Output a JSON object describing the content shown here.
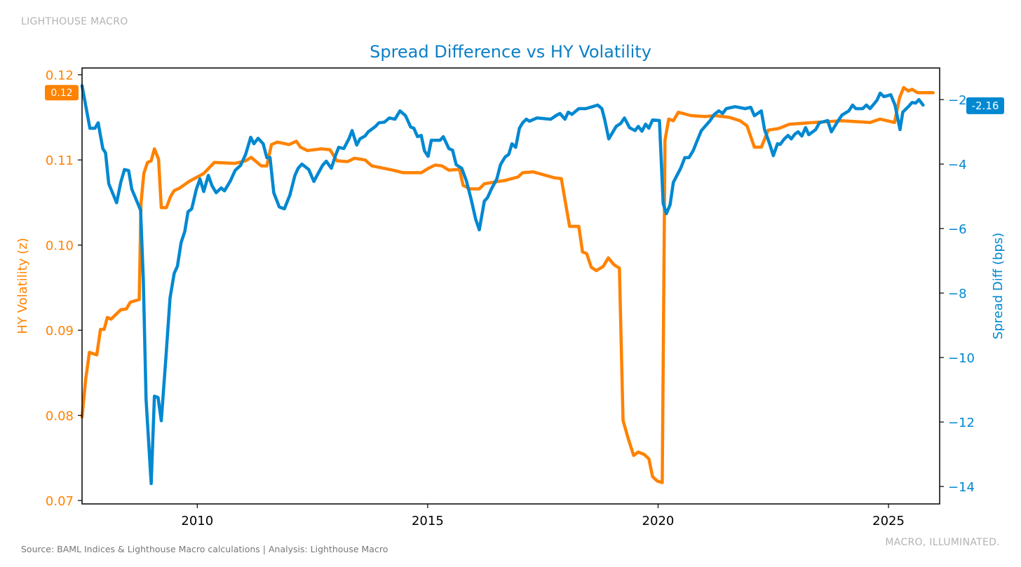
{
  "brand": "LIGHTHOUSE MACRO",
  "source": "Source: BAML Indices & Lighthouse Macro calculations | Analysis: Lighthouse Macro",
  "tagline": "MACRO, ILLUMINATED.",
  "colors": {
    "hy_vol": "#ff8200",
    "spread_diff": "#0088d1",
    "title": "#0a7fc8"
  },
  "chart_data": {
    "type": "line",
    "title": "Spread Difference vs HY Volatility",
    "xlabel": "",
    "ylabel_left": "HY Volatility (z)",
    "ylabel_right": "Spread Diff (bps)",
    "xlim": [
      2007.5,
      2026.11
    ],
    "ylim_left": [
      0.0696,
      0.1208
    ],
    "ylim_right": [
      -14.54,
      -1.02
    ],
    "x_ticks": [
      2010,
      2015,
      2020,
      2025
    ],
    "y_ticks_left": [
      0.07,
      0.08,
      0.09,
      0.1,
      0.11,
      0.12
    ],
    "y_ticks_right": [
      -14,
      -12,
      -10,
      -8,
      -6,
      -4,
      -2
    ],
    "y_tick_labels_left": [
      "0.07",
      "0.08",
      "0.09",
      "0.10",
      "0.11",
      "0.12"
    ],
    "y_tick_labels_right": [
      "−14",
      "−12",
      "−10",
      "−8",
      "−6",
      "−4",
      "−2"
    ],
    "grid": false,
    "series": [
      {
        "name": "HY Volatility (z)",
        "axis": "left",
        "last_label": "0.12",
        "x": [
          2007.5,
          2007.58,
          2007.66,
          2007.82,
          2007.9,
          2007.98,
          2008.05,
          2008.13,
          2008.34,
          2008.46,
          2008.55,
          2008.74,
          2008.78,
          2008.84,
          2008.92,
          2009.0,
          2009.07,
          2009.16,
          2009.22,
          2009.33,
          2009.42,
          2009.5,
          2009.62,
          2009.83,
          2010.14,
          2010.37,
          2010.82,
          2011.05,
          2011.17,
          2011.39,
          2011.51,
          2011.61,
          2011.74,
          2011.99,
          2012.15,
          2012.24,
          2012.39,
          2012.69,
          2012.88,
          2013.03,
          2013.26,
          2013.41,
          2013.64,
          2013.79,
          2014.25,
          2014.47,
          2014.86,
          2015.01,
          2015.16,
          2015.31,
          2015.46,
          2015.69,
          2015.77,
          2015.92,
          2016.12,
          2016.23,
          2016.68,
          2016.96,
          2017.06,
          2017.29,
          2017.75,
          2017.9,
          2017.98,
          2018.08,
          2018.28,
          2018.36,
          2018.45,
          2018.55,
          2018.66,
          2018.81,
          2018.92,
          2019.04,
          2019.16,
          2019.24,
          2019.35,
          2019.47,
          2019.57,
          2019.7,
          2019.8,
          2019.88,
          2019.98,
          2020.09,
          2020.15,
          2020.23,
          2020.33,
          2020.44,
          2020.72,
          2021.02,
          2021.25,
          2021.55,
          2021.78,
          2021.93,
          2022.09,
          2022.24,
          2022.39,
          2022.62,
          2022.85,
          2023.38,
          2023.99,
          2024.6,
          2024.82,
          2025.13,
          2025.24,
          2025.33,
          2025.43,
          2025.51,
          2025.63,
          2025.97
        ],
        "y": [
          0.0798,
          0.0843,
          0.0874,
          0.0871,
          0.0901,
          0.0901,
          0.0915,
          0.0913,
          0.0924,
          0.0925,
          0.0933,
          0.0936,
          0.1049,
          0.1084,
          0.1097,
          0.1099,
          0.1113,
          0.1101,
          0.1044,
          0.1044,
          0.1057,
          0.1064,
          0.1067,
          0.1075,
          0.1084,
          0.1097,
          0.1096,
          0.1099,
          0.1103,
          0.1093,
          0.1093,
          0.1118,
          0.1121,
          0.1118,
          0.1122,
          0.1115,
          0.1111,
          0.1113,
          0.1112,
          0.1099,
          0.1098,
          0.1102,
          0.11,
          0.1093,
          0.1088,
          0.1085,
          0.1085,
          0.109,
          0.1094,
          0.1093,
          0.1088,
          0.1089,
          0.107,
          0.1066,
          0.1066,
          0.1072,
          0.1076,
          0.108,
          0.1085,
          0.1086,
          0.1079,
          0.1078,
          0.1053,
          0.1022,
          0.1022,
          0.0992,
          0.099,
          0.0974,
          0.097,
          0.0975,
          0.0985,
          0.0977,
          0.0973,
          0.0794,
          0.0773,
          0.0753,
          0.0757,
          0.0754,
          0.0749,
          0.0728,
          0.0723,
          0.0721,
          0.1123,
          0.1148,
          0.1146,
          0.1156,
          0.1152,
          0.1151,
          0.1152,
          0.115,
          0.1146,
          0.114,
          0.1115,
          0.1115,
          0.1135,
          0.1137,
          0.1142,
          0.1144,
          0.1146,
          0.1144,
          0.1148,
          0.1144,
          0.1173,
          0.1185,
          0.1181,
          0.1183,
          0.1179,
          0.1179
        ]
      },
      {
        "name": "Spread Diff (bps)",
        "axis": "right",
        "last_label": "-2.16",
        "x": [
          2007.5,
          2007.67,
          2007.78,
          2007.85,
          2007.95,
          2008.01,
          2008.08,
          2008.25,
          2008.34,
          2008.42,
          2008.51,
          2008.58,
          2008.77,
          2008.83,
          2008.89,
          2009.0,
          2009.07,
          2009.15,
          2009.22,
          2009.32,
          2009.41,
          2009.5,
          2009.57,
          2009.65,
          2009.73,
          2009.8,
          2009.88,
          2009.98,
          2010.06,
          2010.14,
          2010.24,
          2010.32,
          2010.41,
          2010.52,
          2010.59,
          2010.72,
          2010.82,
          2010.94,
          2011.05,
          2011.16,
          2011.23,
          2011.32,
          2011.43,
          2011.51,
          2011.58,
          2011.66,
          2011.78,
          2011.89,
          2012.01,
          2012.12,
          2012.19,
          2012.27,
          2012.42,
          2012.53,
          2012.6,
          2012.72,
          2012.8,
          2012.91,
          2013.0,
          2013.07,
          2013.18,
          2013.29,
          2013.36,
          2013.46,
          2013.53,
          2013.64,
          2013.71,
          2013.87,
          2013.94,
          2014.06,
          2014.17,
          2014.29,
          2014.4,
          2014.52,
          2014.63,
          2014.7,
          2014.78,
          2014.86,
          2014.93,
          2015.01,
          2015.08,
          2015.27,
          2015.34,
          2015.46,
          2015.54,
          2015.62,
          2015.74,
          2015.84,
          2015.95,
          2016.04,
          2016.12,
          2016.23,
          2016.3,
          2016.38,
          2016.5,
          2016.58,
          2016.68,
          2016.76,
          2016.83,
          2016.91,
          2016.99,
          2017.06,
          2017.14,
          2017.21,
          2017.37,
          2017.67,
          2017.78,
          2017.87,
          2017.98,
          2018.05,
          2018.13,
          2018.28,
          2018.43,
          2018.58,
          2018.69,
          2018.78,
          2018.84,
          2018.93,
          2019.09,
          2019.19,
          2019.27,
          2019.38,
          2019.5,
          2019.57,
          2019.65,
          2019.73,
          2019.8,
          2019.88,
          2020.03,
          2020.11,
          2020.18,
          2020.26,
          2020.33,
          2020.41,
          2020.49,
          2020.58,
          2020.67,
          2020.76,
          2020.87,
          2020.94,
          2021.13,
          2021.22,
          2021.32,
          2021.4,
          2021.48,
          2021.67,
          2021.89,
          2022.01,
          2022.09,
          2022.24,
          2022.31,
          2022.42,
          2022.5,
          2022.59,
          2022.65,
          2022.74,
          2022.82,
          2022.89,
          2022.97,
          2023.04,
          2023.12,
          2023.2,
          2023.27,
          2023.42,
          2023.5,
          2023.68,
          2023.76,
          2023.91,
          2023.99,
          2024.14,
          2024.22,
          2024.29,
          2024.44,
          2024.52,
          2024.6,
          2024.75,
          2024.82,
          2024.9,
          2025.05,
          2025.14,
          2025.25,
          2025.31,
          2025.43,
          2025.51,
          2025.59,
          2025.66,
          2025.75
        ],
        "y": [
          -1.57,
          -2.89,
          -2.89,
          -2.72,
          -3.52,
          -3.65,
          -4.61,
          -5.2,
          -4.57,
          -4.17,
          -4.2,
          -4.78,
          -5.43,
          -7.61,
          -11.3,
          -13.91,
          -11.2,
          -11.24,
          -11.96,
          -10.0,
          -8.15,
          -7.39,
          -7.17,
          -6.43,
          -6.09,
          -5.48,
          -5.39,
          -4.78,
          -4.46,
          -4.85,
          -4.35,
          -4.67,
          -4.89,
          -4.74,
          -4.83,
          -4.52,
          -4.2,
          -4.04,
          -3.7,
          -3.17,
          -3.37,
          -3.2,
          -3.37,
          -3.8,
          -3.8,
          -4.89,
          -5.33,
          -5.39,
          -4.96,
          -4.35,
          -4.13,
          -4.0,
          -4.17,
          -4.54,
          -4.35,
          -4.04,
          -3.91,
          -4.13,
          -3.74,
          -3.48,
          -3.52,
          -3.22,
          -2.96,
          -3.41,
          -3.22,
          -3.13,
          -3.0,
          -2.83,
          -2.72,
          -2.7,
          -2.57,
          -2.61,
          -2.35,
          -2.5,
          -2.85,
          -2.89,
          -3.15,
          -3.11,
          -3.59,
          -3.76,
          -3.26,
          -3.26,
          -3.15,
          -3.52,
          -3.57,
          -4.02,
          -4.13,
          -4.52,
          -5.13,
          -5.7,
          -6.04,
          -5.15,
          -5.04,
          -4.78,
          -4.46,
          -4.02,
          -3.78,
          -3.7,
          -3.37,
          -3.48,
          -2.89,
          -2.72,
          -2.61,
          -2.67,
          -2.57,
          -2.61,
          -2.5,
          -2.43,
          -2.61,
          -2.39,
          -2.46,
          -2.28,
          -2.28,
          -2.22,
          -2.17,
          -2.28,
          -2.61,
          -3.22,
          -2.83,
          -2.74,
          -2.57,
          -2.87,
          -2.96,
          -2.83,
          -2.98,
          -2.76,
          -2.89,
          -2.63,
          -2.65,
          -5.22,
          -5.54,
          -5.26,
          -4.57,
          -4.35,
          -4.13,
          -3.8,
          -3.8,
          -3.59,
          -3.2,
          -2.96,
          -2.65,
          -2.46,
          -2.35,
          -2.43,
          -2.28,
          -2.22,
          -2.28,
          -2.24,
          -2.5,
          -2.35,
          -2.93,
          -3.37,
          -3.74,
          -3.37,
          -3.39,
          -3.22,
          -3.11,
          -3.22,
          -3.07,
          -3.0,
          -3.13,
          -2.87,
          -3.09,
          -2.93,
          -2.72,
          -2.65,
          -3.0,
          -2.65,
          -2.48,
          -2.35,
          -2.17,
          -2.28,
          -2.28,
          -2.17,
          -2.28,
          -2.02,
          -1.8,
          -1.91,
          -1.85,
          -2.17,
          -2.93,
          -2.39,
          -2.22,
          -2.09,
          -2.11,
          -2.0,
          -2.17
        ]
      }
    ]
  }
}
